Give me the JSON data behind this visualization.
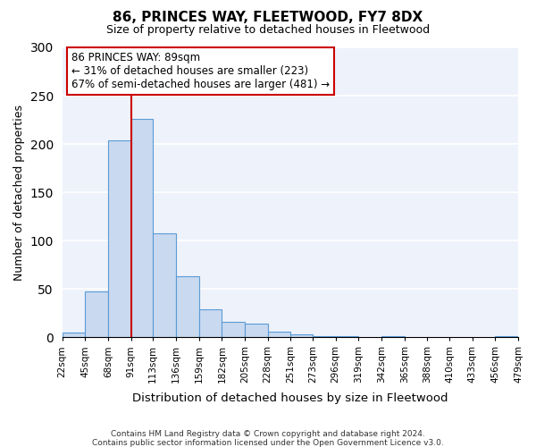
{
  "title": "86, PRINCES WAY, FLEETWOOD, FY7 8DX",
  "subtitle": "Size of property relative to detached houses in Fleetwood",
  "xlabel": "Distribution of detached houses by size in Fleetwood",
  "ylabel": "Number of detached properties",
  "bin_edges": [
    22,
    45,
    68,
    91,
    113,
    136,
    159,
    182,
    205,
    228,
    251,
    273,
    296,
    319,
    342,
    365,
    388,
    410,
    433,
    456,
    479
  ],
  "bar_heights": [
    5,
    47,
    204,
    226,
    108,
    63,
    29,
    16,
    14,
    6,
    3,
    1,
    1,
    0,
    1,
    0,
    0,
    0,
    0,
    1
  ],
  "bar_facecolor": "#c9d9f0",
  "bar_edgecolor": "#5b9bd5",
  "tick_labels": [
    "22sqm",
    "45sqm",
    "68sqm",
    "91sqm",
    "113sqm",
    "136sqm",
    "159sqm",
    "182sqm",
    "205sqm",
    "228sqm",
    "251sqm",
    "273sqm",
    "296sqm",
    "319sqm",
    "342sqm",
    "365sqm",
    "388sqm",
    "410sqm",
    "433sqm",
    "456sqm",
    "479sqm"
  ],
  "ylim": [
    0,
    300
  ],
  "yticks": [
    0,
    50,
    100,
    150,
    200,
    250,
    300
  ],
  "vline_x": 91,
  "vline_color": "#cc0000",
  "annotation_title": "86 PRINCES WAY: 89sqm",
  "annotation_line1": "← 31% of detached houses are smaller (223)",
  "annotation_line2": "67% of semi-detached houses are larger (481) →",
  "footnote1": "Contains HM Land Registry data © Crown copyright and database right 2024.",
  "footnote2": "Contains public sector information licensed under the Open Government Licence v3.0.",
  "background_color": "#eef2fb",
  "grid_color": "#ffffff",
  "fig_facecolor": "#ffffff"
}
